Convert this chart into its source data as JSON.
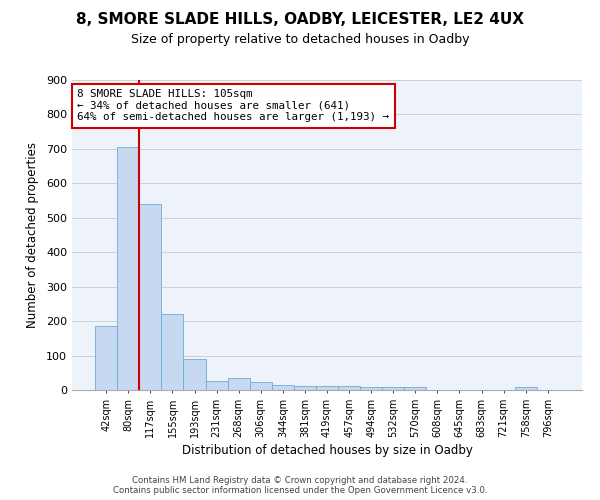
{
  "title": "8, SMORE SLADE HILLS, OADBY, LEICESTER, LE2 4UX",
  "subtitle": "Size of property relative to detached houses in Oadby",
  "xlabel": "Distribution of detached houses by size in Oadby",
  "ylabel": "Number of detached properties",
  "bar_color": "#c6d9f1",
  "bar_edge_color": "#6baed6",
  "grid_color": "#d0d0d0",
  "background_color": "#eef2fa",
  "categories": [
    "42sqm",
    "80sqm",
    "117sqm",
    "155sqm",
    "193sqm",
    "231sqm",
    "268sqm",
    "306sqm",
    "344sqm",
    "381sqm",
    "419sqm",
    "457sqm",
    "494sqm",
    "532sqm",
    "570sqm",
    "608sqm",
    "645sqm",
    "683sqm",
    "721sqm",
    "758sqm",
    "796sqm"
  ],
  "values": [
    185,
    705,
    540,
    222,
    90,
    27,
    36,
    23,
    15,
    12,
    12,
    11,
    8,
    10,
    9,
    0,
    0,
    0,
    0,
    9,
    0
  ],
  "annotation_line1": "8 SMORE SLADE HILLS: 105sqm",
  "annotation_line2": "← 34% of detached houses are smaller (641)",
  "annotation_line3": "64% of semi-detached houses are larger (1,193) →",
  "ylim": [
    0,
    900
  ],
  "yticks": [
    0,
    100,
    200,
    300,
    400,
    500,
    600,
    700,
    800,
    900
  ],
  "footer_line1": "Contains HM Land Registry data © Crown copyright and database right 2024.",
  "footer_line2": "Contains public sector information licensed under the Open Government Licence v3.0.",
  "annotation_box_color": "#ffffff",
  "annotation_box_edge": "#cc0000",
  "red_line_color": "#cc0000",
  "red_line_x": 1.5
}
